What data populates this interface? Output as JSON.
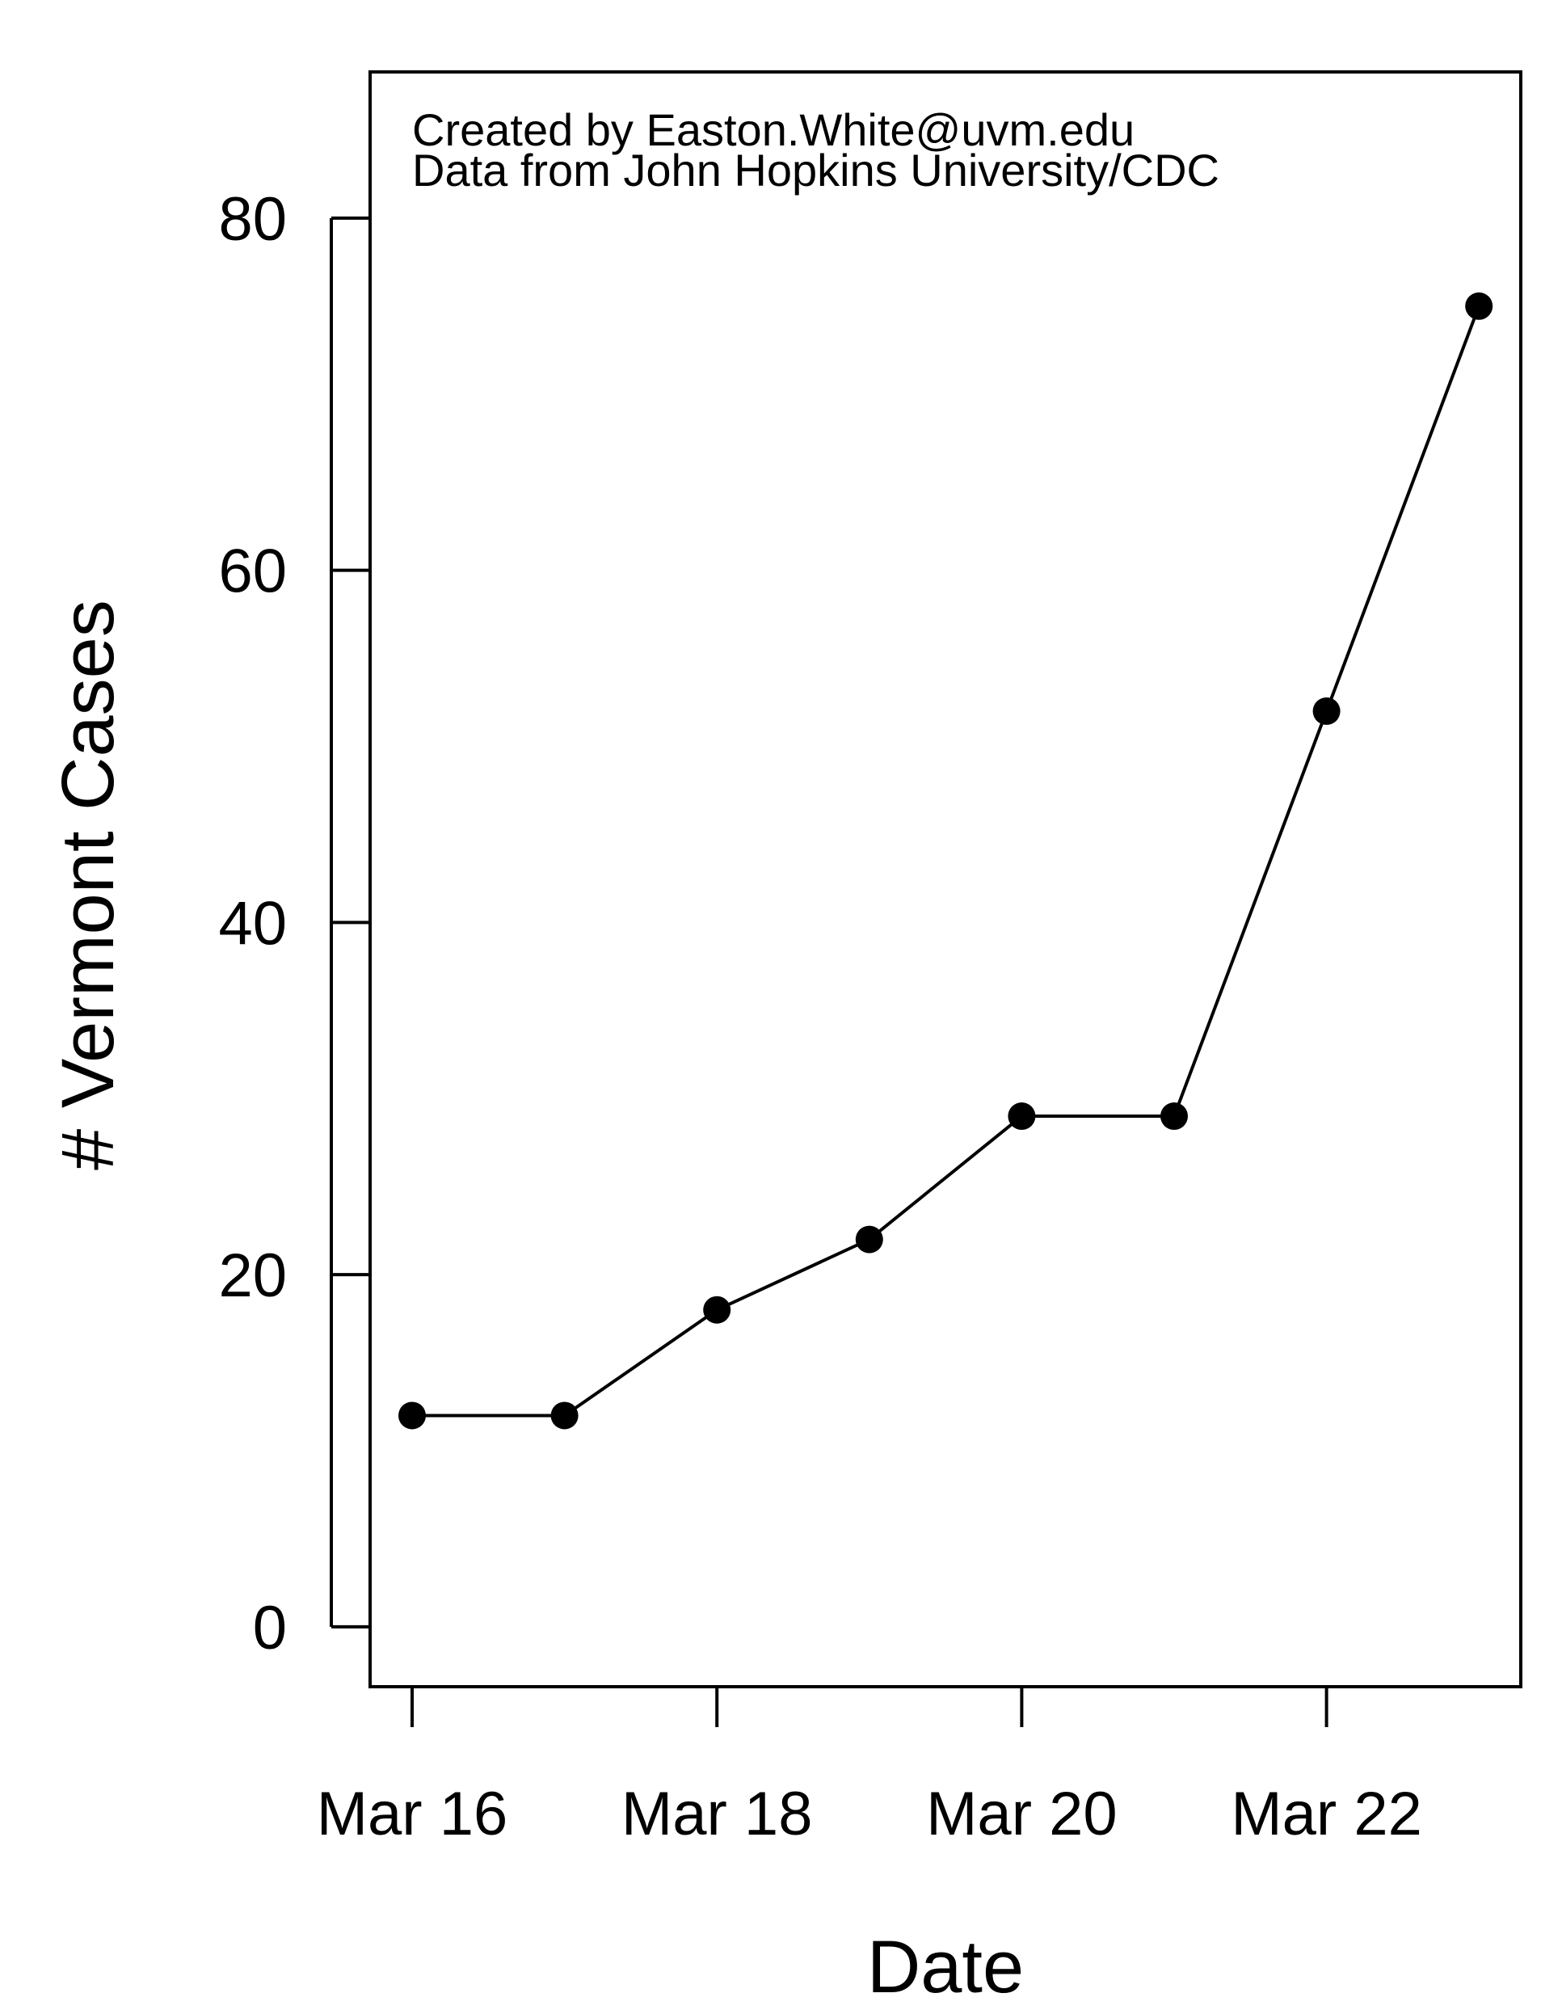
{
  "chart_data": {
    "type": "line",
    "title": "",
    "xlabel": "Date",
    "ylabel": "# Vermont Cases",
    "x": [
      "Mar 16",
      "Mar 17",
      "Mar 18",
      "Mar 19",
      "Mar 20",
      "Mar 21",
      "Mar 22",
      "Mar 23"
    ],
    "series": [
      {
        "values": [
          12,
          12,
          18,
          22,
          29,
          29,
          52,
          75
        ]
      }
    ],
    "x_ticks": [
      "Mar 16",
      "Mar 18",
      "Mar 20",
      "Mar 22"
    ],
    "y_ticks": [
      0,
      20,
      40,
      60,
      80
    ],
    "ylim": [
      -3.4,
      88.3
    ],
    "annotations": [
      "Created by Easton.White@uvm.edu",
      "Data from John Hopkins University/CDC"
    ],
    "grid": false,
    "legend": "none",
    "marker": "filled-circle",
    "line_color": "#000000"
  }
}
